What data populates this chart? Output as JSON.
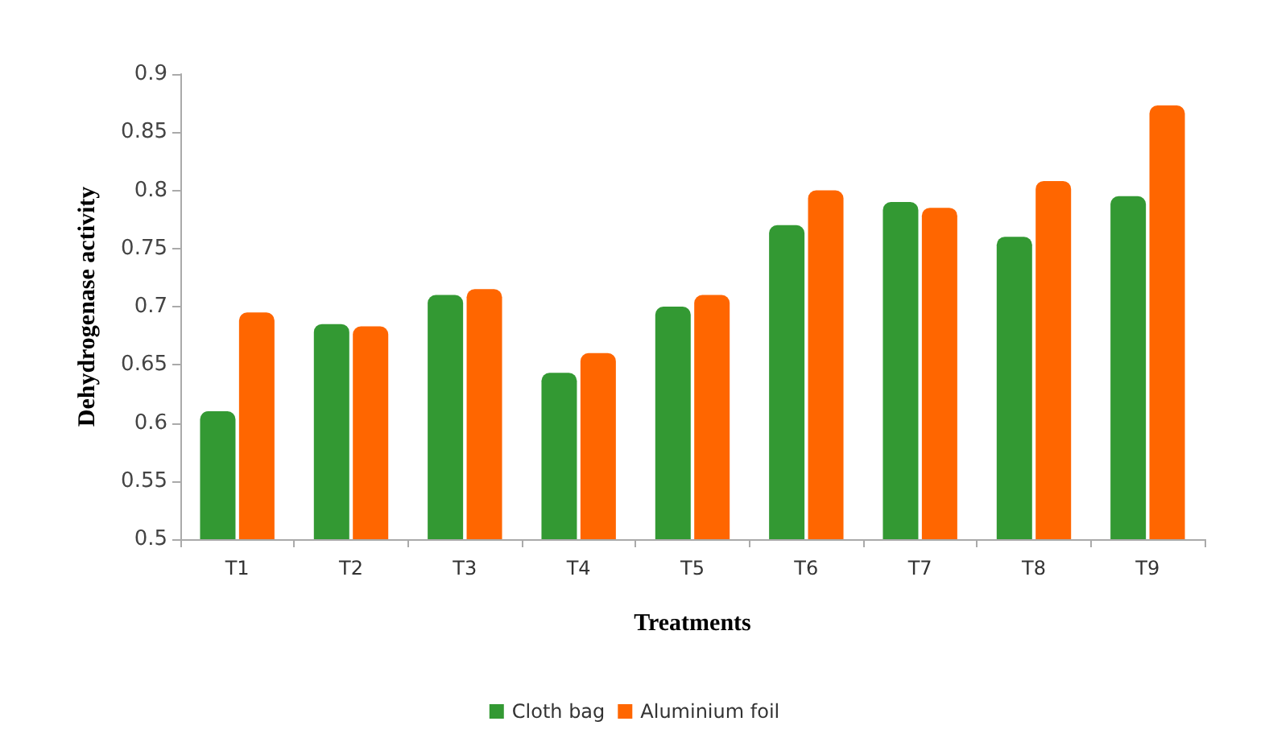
{
  "chart_data": {
    "type": "bar",
    "xlabel": "Treatments",
    "ylabel": "Dehydrogenase activity",
    "categories": [
      "T1",
      "T2",
      "T3",
      "T4",
      "T5",
      "T6",
      "T7",
      "T8",
      "T9"
    ],
    "series": [
      {
        "name": "Cloth bag",
        "color": "#339933",
        "values": [
          0.61,
          0.685,
          0.71,
          0.643,
          0.7,
          0.77,
          0.79,
          0.76,
          0.795
        ]
      },
      {
        "name": "Aluminium foil",
        "color": "#ff6600",
        "values": [
          0.695,
          0.683,
          0.715,
          0.66,
          0.71,
          0.8,
          0.785,
          0.808,
          0.873
        ]
      }
    ],
    "ylim": [
      0.5,
      0.9
    ],
    "yticks": [
      0.5,
      0.55,
      0.6,
      0.65,
      0.7,
      0.75,
      0.8,
      0.85,
      0.9
    ],
    "grid": false,
    "legend": "bottom"
  }
}
